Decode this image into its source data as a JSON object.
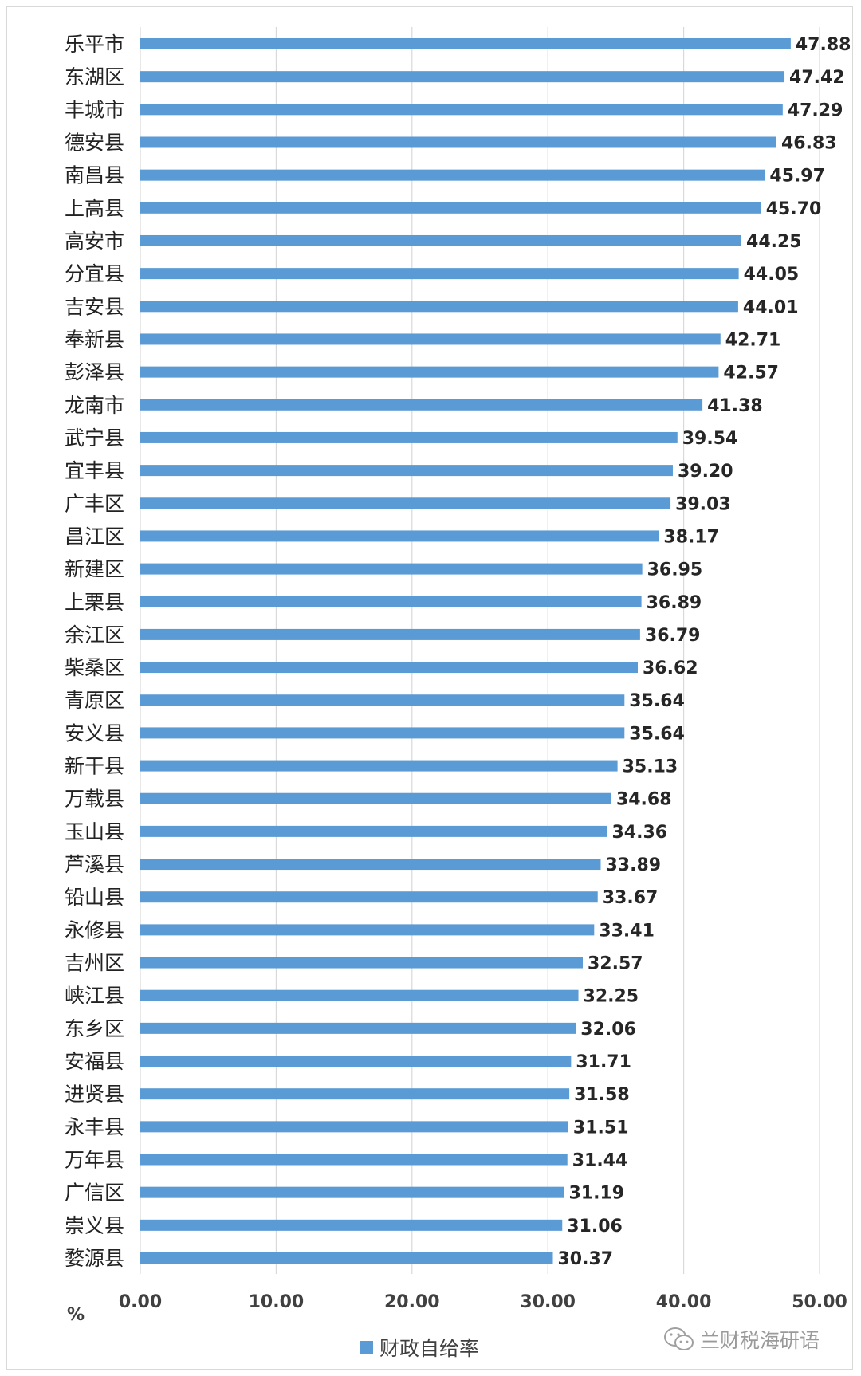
{
  "chart_data": {
    "type": "bar",
    "orientation": "horizontal",
    "categories": [
      "乐平市",
      "东湖区",
      "丰城市",
      "德安县",
      "南昌县",
      "上高县",
      "高安市",
      "分宜县",
      "吉安县",
      "奉新县",
      "彭泽县",
      "龙南市",
      "武宁县",
      "宜丰县",
      "广丰区",
      "昌江区",
      "新建区",
      "上栗县",
      "余江区",
      "柴桑区",
      "青原区",
      "安义县",
      "新干县",
      "万载县",
      "玉山县",
      "芦溪县",
      "铅山县",
      "永修县",
      "吉州区",
      "峡江县",
      "东乡区",
      "安福县",
      "进贤县",
      "永丰县",
      "万年县",
      "广信区",
      "崇义县",
      "婺源县"
    ],
    "value_labels": [
      "47.88",
      "47.42",
      "47.29",
      "46.83",
      "45.97",
      "45.70",
      "44.25",
      "44.05",
      "44.01",
      "42.71",
      "42.57",
      "41.38",
      "39.54",
      "39.20",
      "39.03",
      "38.17",
      "36.95",
      "36.89",
      "36.79",
      "36.62",
      "35.64",
      "35.64",
      "35.13",
      "34.68",
      "34.36",
      "33.89",
      "33.67",
      "33.41",
      "32.57",
      "32.25",
      "32.06",
      "31.71",
      "31.58",
      "31.51",
      "31.44",
      "31.19",
      "31.06",
      "30.37"
    ],
    "series": [
      {
        "name": "财政自给率",
        "values": [
          47.88,
          47.42,
          47.29,
          46.83,
          45.97,
          45.7,
          44.25,
          44.05,
          44.01,
          42.71,
          42.57,
          41.38,
          39.54,
          39.2,
          39.03,
          38.17,
          36.95,
          36.89,
          36.79,
          36.62,
          35.64,
          35.64,
          35.13,
          34.68,
          34.36,
          33.89,
          33.67,
          33.41,
          32.57,
          32.25,
          32.06,
          31.71,
          31.58,
          31.51,
          31.44,
          31.19,
          31.06,
          30.37
        ]
      }
    ],
    "xticks": [
      "0.00",
      "10.00",
      "20.00",
      "30.00",
      "40.00",
      "50.00"
    ],
    "xlim": [
      0,
      50
    ],
    "xunit": "%",
    "grid": true,
    "legend_position": "bottom",
    "colors": {
      "bar": "#5b9bd5",
      "grid": "#d9d9d9"
    }
  },
  "legend": {
    "label": "财政自给率"
  },
  "watermark": {
    "text": "兰财税海研语"
  }
}
